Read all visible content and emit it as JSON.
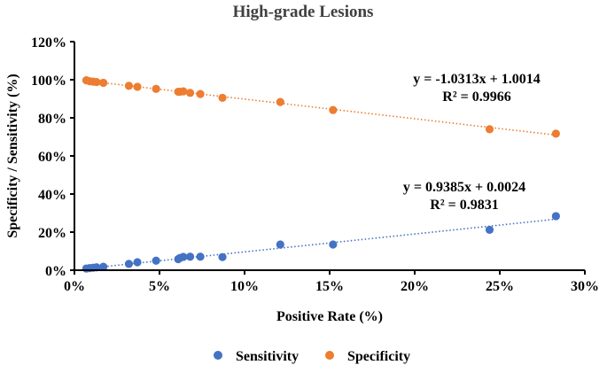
{
  "chart_data": {
    "type": "scatter",
    "title": "High-grade Lesions",
    "xlabel": "Positive Rate (%)",
    "ylabel": "Specificity / Sensitivity (%)",
    "xlim": [
      0,
      0.3
    ],
    "ylim": [
      0,
      1.2
    ],
    "x_ticks": [
      0,
      0.05,
      0.1,
      0.15,
      0.2,
      0.25,
      0.3
    ],
    "x_tick_labels": [
      "0%",
      "5%",
      "10%",
      "15%",
      "20%",
      "25%",
      "30%"
    ],
    "y_ticks": [
      0,
      0.2,
      0.4,
      0.6,
      0.8,
      1.0,
      1.2
    ],
    "y_tick_labels": [
      "0%",
      "20%",
      "40%",
      "60%",
      "80%",
      "100%",
      "120%"
    ],
    "legend_position": "bottom",
    "series": [
      {
        "name": "Sensitivity",
        "color": "#4472C4",
        "trendline": {
          "slope": 0.9385,
          "intercept": 0.0024
        },
        "equation": "y = 0.9385x + 0.0024",
        "r2": "R² = 0.9831",
        "points": [
          [
            0.007,
            0.009
          ],
          [
            0.009,
            0.011
          ],
          [
            0.011,
            0.013
          ],
          [
            0.013,
            0.015
          ],
          [
            0.017,
            0.018
          ],
          [
            0.032,
            0.033
          ],
          [
            0.037,
            0.042
          ],
          [
            0.048,
            0.05
          ],
          [
            0.061,
            0.058
          ],
          [
            0.062,
            0.064
          ],
          [
            0.064,
            0.07
          ],
          [
            0.068,
            0.071
          ],
          [
            0.074,
            0.071
          ],
          [
            0.087,
            0.069
          ],
          [
            0.121,
            0.135
          ],
          [
            0.152,
            0.135
          ],
          [
            0.244,
            0.212
          ],
          [
            0.283,
            0.284
          ]
        ]
      },
      {
        "name": "Specificity",
        "color": "#ED7D31",
        "trendline": {
          "slope": -1.0313,
          "intercept": 1.0014
        },
        "equation": "y = -1.0313x + 1.0014",
        "r2": "R² = 0.9966",
        "points": [
          [
            0.007,
            0.997
          ],
          [
            0.009,
            0.992
          ],
          [
            0.011,
            0.99
          ],
          [
            0.013,
            0.988
          ],
          [
            0.017,
            0.984
          ],
          [
            0.032,
            0.968
          ],
          [
            0.037,
            0.963
          ],
          [
            0.048,
            0.952
          ],
          [
            0.061,
            0.937
          ],
          [
            0.062,
            0.937
          ],
          [
            0.064,
            0.939
          ],
          [
            0.068,
            0.931
          ],
          [
            0.074,
            0.925
          ],
          [
            0.087,
            0.905
          ],
          [
            0.121,
            0.883
          ],
          [
            0.152,
            0.841
          ],
          [
            0.244,
            0.74
          ],
          [
            0.283,
            0.717
          ]
        ]
      }
    ]
  }
}
